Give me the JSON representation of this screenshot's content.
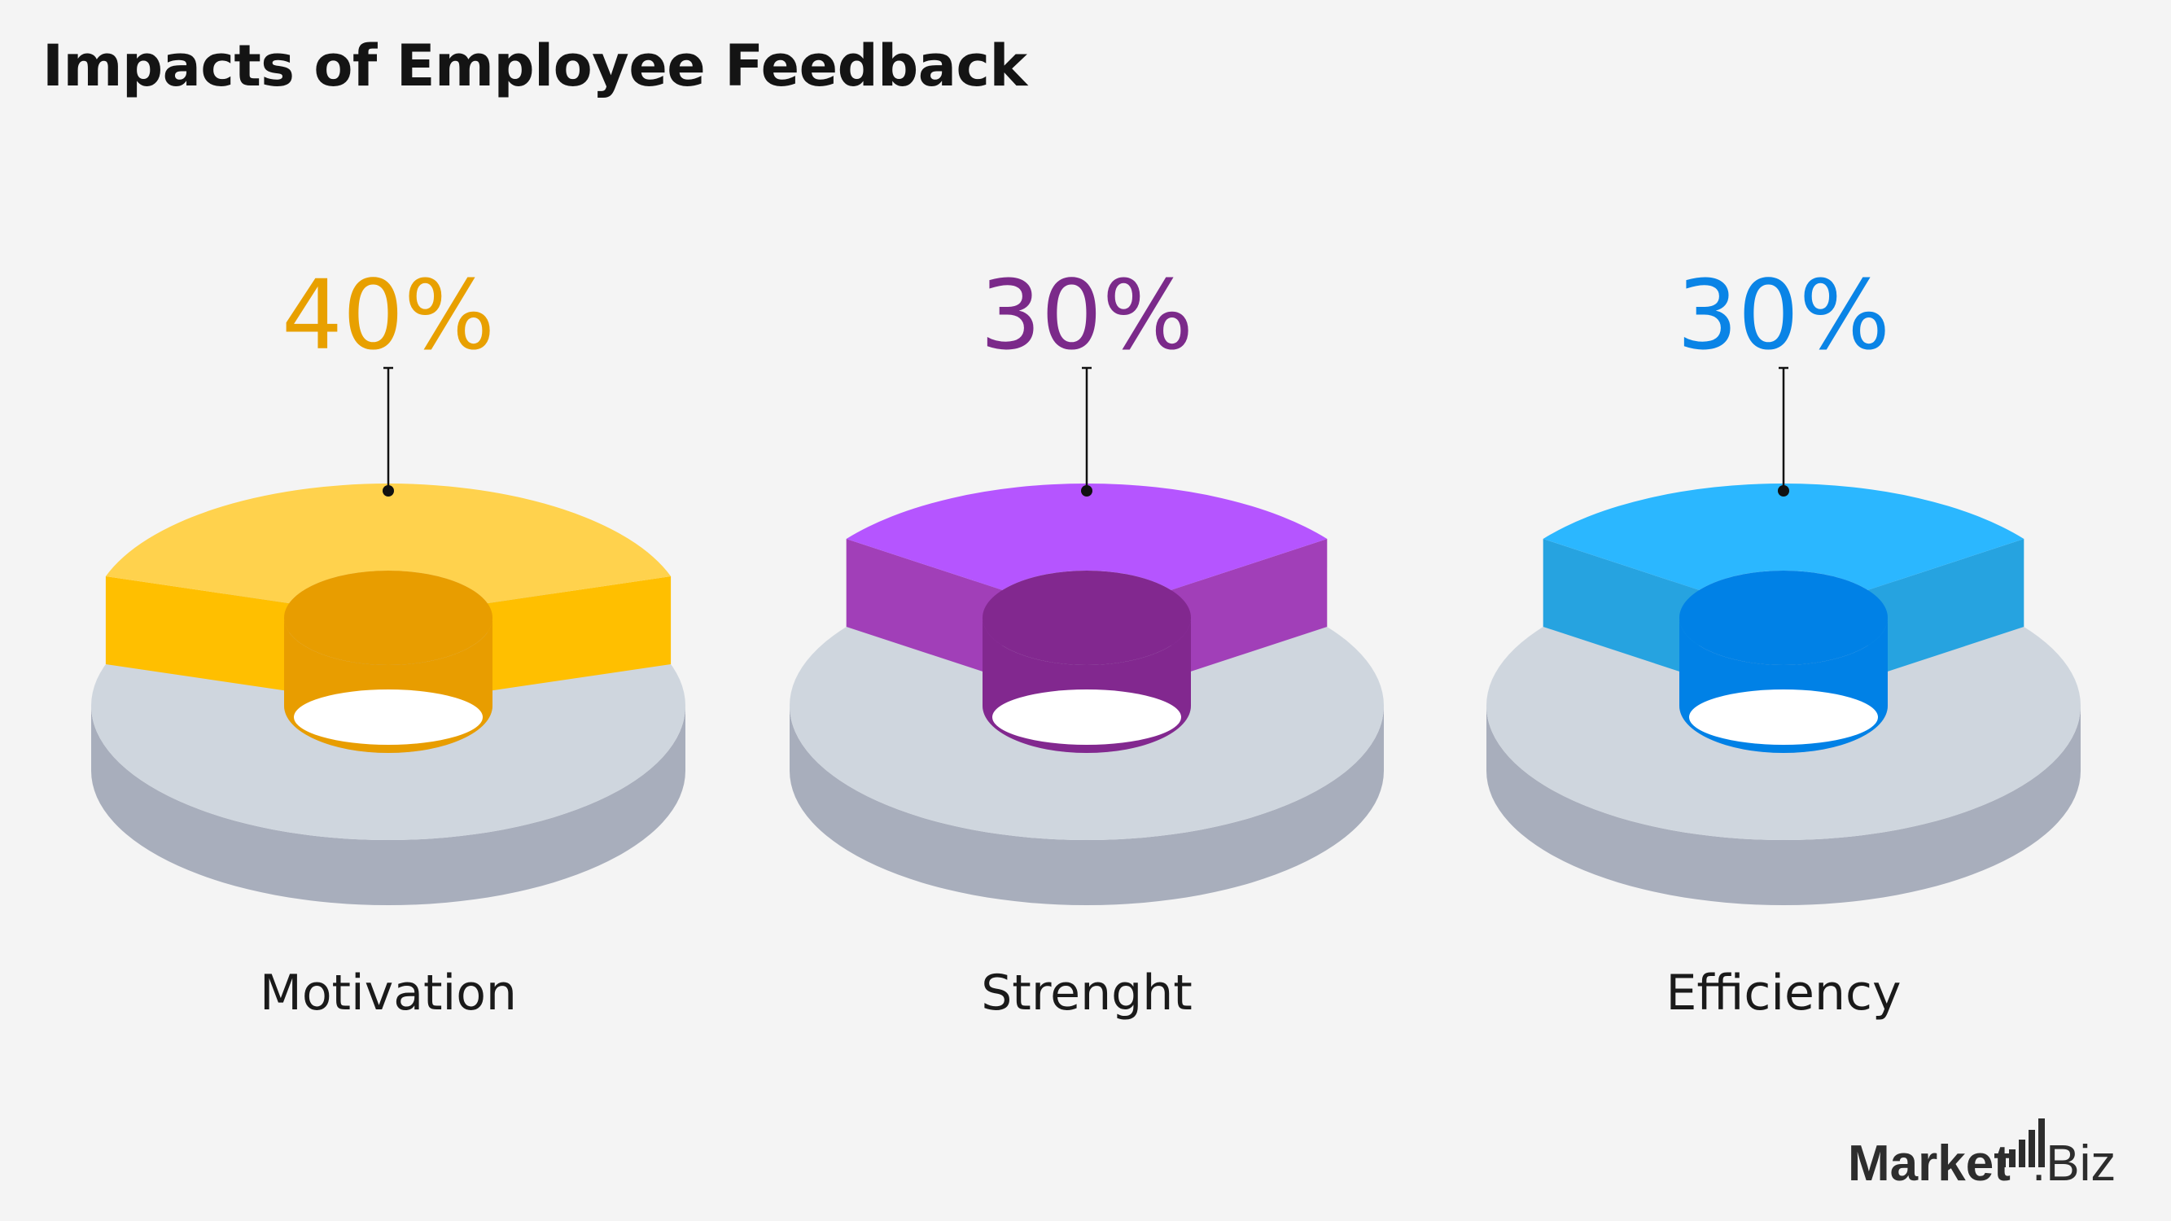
{
  "title": "Impacts of Employee Feedback",
  "brand": {
    "name_bold": "Market",
    "name_light": ".Biz"
  },
  "chart_data": {
    "type": "pie",
    "title": "Impacts of Employee Feedback",
    "unit": "%",
    "categories": [
      "Motivation",
      "Strenght",
      "Efficiency"
    ],
    "values": [
      40,
      30,
      30
    ],
    "value_labels": [
      "40%",
      "30%",
      "30%"
    ],
    "colors": {
      "Motivation": {
        "label": "#e8a000",
        "top": "#ffd24d",
        "side": "#ffbf00",
        "inner": "#e89d00"
      },
      "Strenght": {
        "label": "#7b2a8a",
        "top": "#b555ff",
        "side": "#a13fb8",
        "inner": "#82288f"
      },
      "Efficiency": {
        "label": "#0a84e6",
        "top": "#2bb7ff",
        "side": "#26a3e0",
        "inner": "#0081e6"
      }
    },
    "base_colors": {
      "top": "#cfd6de",
      "side": "#a8aebc",
      "hole_wall": "#b8bec8"
    }
  }
}
